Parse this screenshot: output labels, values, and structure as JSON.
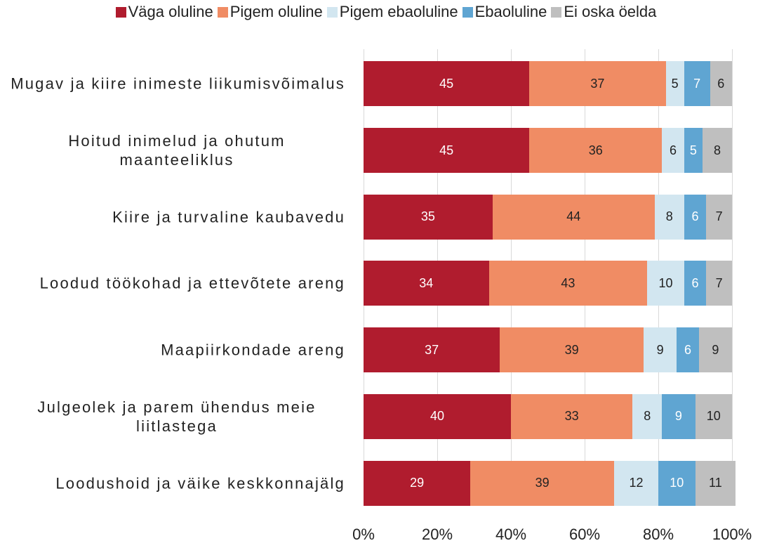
{
  "chart_data": {
    "type": "stacked-bar-horizontal",
    "categories": [
      "Mugav ja kiire inimeste liikumisvõimalus",
      "Hoitud inimelud ja ohutum maanteeliklus",
      "Kiire ja turvaline kaubavedu",
      "Loodud töökohad ja ettevõtete areng",
      "Maapiirkondade areng",
      "Julgeolek ja parem ühendus meie liitlastega",
      "Loodushoid ja väike keskkonnajälg"
    ],
    "series": [
      {
        "name": "Väga oluline",
        "color": "#b01c2e",
        "values": [
          45,
          45,
          35,
          34,
          37,
          40,
          29
        ]
      },
      {
        "name": "Pigem oluline",
        "color": "#f08c64",
        "values": [
          37,
          36,
          44,
          43,
          39,
          33,
          39
        ]
      },
      {
        "name": "Pigem ebaoluline",
        "color": "#d2e6f0",
        "values": [
          5,
          6,
          8,
          10,
          9,
          8,
          12
        ]
      },
      {
        "name": "Ebaoluline",
        "color": "#5fa5d2",
        "values": [
          7,
          5,
          6,
          6,
          6,
          9,
          10
        ]
      },
      {
        "name": "Ei oska öelda",
        "color": "#bfbfbf",
        "values": [
          6,
          8,
          7,
          7,
          9,
          10,
          11
        ]
      }
    ],
    "xlim": [
      0,
      100
    ],
    "xticks": [
      {
        "value": 0,
        "label": "0%"
      },
      {
        "value": 20,
        "label": "20%"
      },
      {
        "value": 40,
        "label": "40%"
      },
      {
        "value": 60,
        "label": "60%"
      },
      {
        "value": 80,
        "label": "80%"
      },
      {
        "value": 100,
        "label": "100%"
      }
    ],
    "grid": true,
    "legend": "top"
  }
}
